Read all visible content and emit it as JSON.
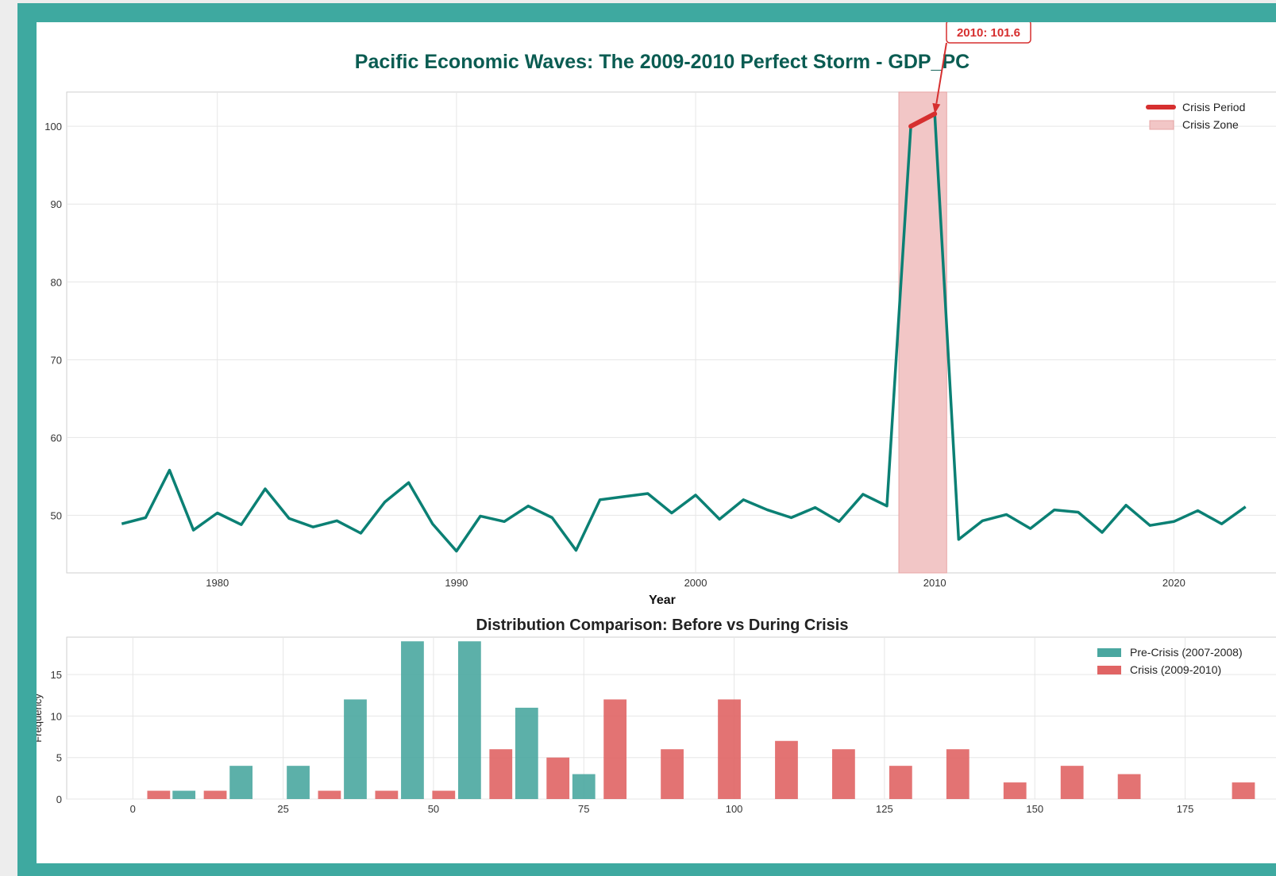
{
  "colors": {
    "frame": "#3ea9a0",
    "line": "#0b8074",
    "crisis_line": "#d62f2f",
    "crisis_zone": "#f2c6c6",
    "pre_bar": "#4aa7a0",
    "crisis_bar": "#e06464",
    "title": "#0a5c52"
  },
  "chart_data": [
    {
      "type": "line",
      "title": "Pacific Economic Waves: The 2009-2010 Perfect Storm - GDP_PC",
      "xlabel": "Year",
      "ylabel": "",
      "xlim": [
        1973.7,
        2025.5
      ],
      "ylim": [
        42.6,
        104.4
      ],
      "xticks": [
        1980,
        1990,
        2000,
        2010,
        2020
      ],
      "yticks": [
        50,
        60,
        70,
        80,
        90,
        100
      ],
      "grid": true,
      "legend_position": "top-right",
      "series": [
        {
          "name": "",
          "x": [
            1976,
            1977,
            1978,
            1979,
            1980,
            1981,
            1982,
            1983,
            1984,
            1985,
            1986,
            1987,
            1988,
            1989,
            1990,
            1991,
            1992,
            1993,
            1994,
            1995,
            1996,
            1997,
            1998,
            1999,
            2000,
            2001,
            2002,
            2003,
            2004,
            2005,
            2006,
            2007,
            2008,
            2009,
            2010,
            2011,
            2012,
            2013,
            2014,
            2015,
            2016,
            2017,
            2018,
            2019,
            2020,
            2021,
            2022,
            2023
          ],
          "y": [
            48.9,
            49.7,
            55.8,
            48.1,
            50.3,
            48.8,
            53.4,
            49.6,
            48.5,
            49.3,
            47.7,
            51.7,
            54.2,
            48.9,
            45.4,
            49.9,
            49.2,
            51.2,
            49.7,
            45.5,
            52.0,
            52.4,
            52.8,
            50.3,
            52.6,
            49.5,
            52.0,
            50.7,
            49.7,
            51.0,
            49.2,
            52.7,
            51.2,
            100.0,
            101.6,
            46.9,
            49.3,
            50.1,
            48.3,
            50.7,
            50.4,
            47.8,
            51.3,
            48.7,
            49.2,
            50.6,
            48.9,
            51.1
          ]
        },
        {
          "name": "Crisis Period",
          "x": [
            2009,
            2010
          ],
          "y": [
            100.0,
            101.6
          ]
        }
      ],
      "shaded_region": {
        "name": "Crisis Zone",
        "x": [
          2008.5,
          2010.5
        ]
      },
      "annotation": {
        "text": "2010: 101.6",
        "x": 2010,
        "y": 101.6
      }
    },
    {
      "type": "bar",
      "title": "Distribution Comparison: Before vs During Crisis",
      "xlabel": "",
      "ylabel": "Frequency",
      "xlim": [
        -11,
        195
      ],
      "ylim": [
        0,
        19.5
      ],
      "xticks": [
        0,
        25,
        50,
        75,
        100,
        125,
        150,
        175
      ],
      "yticks": [
        0,
        5,
        10,
        15
      ],
      "grid": true,
      "legend_position": "top-right",
      "bar_width": 3.8,
      "series": [
        {
          "name": "Pre-Crisis (2007-2008)",
          "bins": [
            8.5,
            18,
            27.5,
            37,
            46.5,
            56,
            65.5,
            75
          ],
          "values": [
            1,
            4,
            4,
            12,
            19,
            19,
            11,
            3
          ]
        },
        {
          "name": "Crisis (2009-2010)",
          "bins": [
            4.3,
            13.7,
            32.7,
            42.2,
            51.7,
            61.2,
            70.7,
            80.2,
            89.7,
            99.2,
            108.7,
            118.2,
            127.7,
            137.2,
            146.7,
            156.2,
            165.7,
            184.7
          ],
          "values": [
            1,
            1,
            1,
            1,
            1,
            6,
            5,
            12,
            6,
            12,
            7,
            6,
            4,
            6,
            2,
            4,
            3,
            2
          ]
        }
      ]
    }
  ]
}
